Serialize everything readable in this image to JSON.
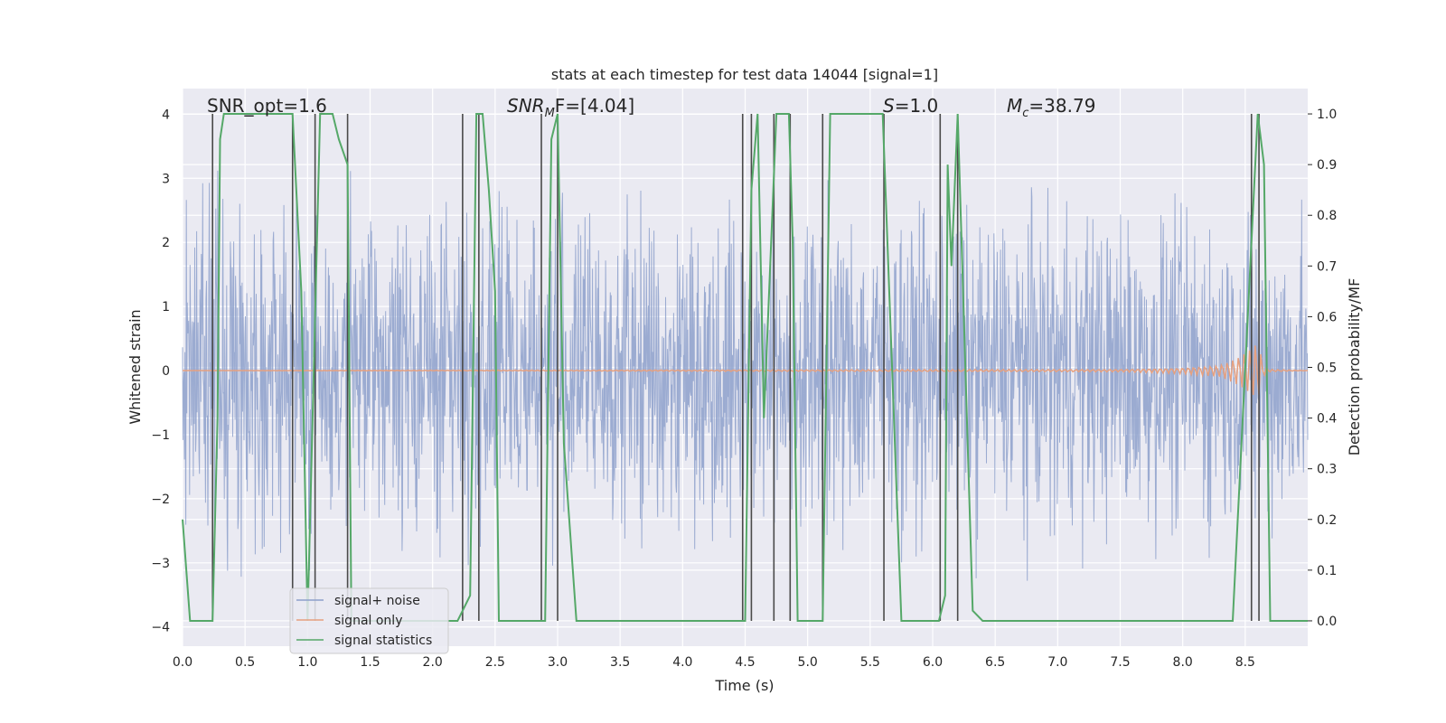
{
  "chart_data": {
    "type": "line",
    "title": "stats at each timestep for test data 14044 [signal=1]",
    "xlabel": "Time (s)",
    "ylabel": "Whitened strain",
    "y2label": "Detection probability/MF",
    "xlim": [
      0.0,
      9.0
    ],
    "ylim": [
      -4.3,
      4.4
    ],
    "y2lim": [
      -0.05,
      1.05
    ],
    "xticks": [
      "0.0",
      "0.5",
      "1.0",
      "1.5",
      "2.0",
      "2.5",
      "3.0",
      "3.5",
      "4.0",
      "4.5",
      "5.0",
      "5.5",
      "6.0",
      "6.5",
      "7.0",
      "7.5",
      "8.0",
      "8.5"
    ],
    "yticks": [
      "4",
      "3",
      "2",
      "1",
      "0",
      "−1",
      "−2",
      "−3",
      "−4"
    ],
    "y2ticks": [
      "1.0",
      "0.9",
      "0.8",
      "0.7",
      "0.6",
      "0.5",
      "0.4",
      "0.3",
      "0.2",
      "0.1",
      "0.0"
    ],
    "grid": true,
    "legend_position": "bottom-left",
    "annotations": [
      "SNR_opt=1.6",
      "SNR",
      "M",
      "F=[4.04]",
      "S",
      "=1.0",
      "M",
      "c",
      "=38.79"
    ],
    "series": [
      {
        "name": "signal+ noise",
        "color": "#8da0cb",
        "axis": "left",
        "description_values": {
          "noise_envelope_typical": 2.0,
          "noise_peak_max": 3.6
        }
      },
      {
        "name": "signal only",
        "color": "#e6a07f",
        "axis": "left",
        "values_x": [
          0.0,
          7.5,
          8.0,
          8.3,
          8.45,
          8.55,
          8.6,
          8.62,
          8.64,
          8.7,
          9.0
        ],
        "values_y": [
          0.0,
          0.02,
          0.05,
          0.1,
          0.25,
          0.4,
          0.5,
          0.35,
          0.1,
          0.02,
          0.0
        ]
      },
      {
        "name": "signal statistics",
        "color": "#55a868",
        "axis": "right",
        "x": [
          0.0,
          0.06,
          0.24,
          0.28,
          0.3,
          0.33,
          0.6,
          0.88,
          0.95,
          1.0,
          1.1,
          1.2,
          1.25,
          1.32,
          1.35,
          1.4,
          2.2,
          2.3,
          2.35,
          2.4,
          2.45,
          2.5,
          2.53,
          2.9,
          2.95,
          3.0,
          3.05,
          3.15,
          3.3,
          4.5,
          4.55,
          4.6,
          4.65,
          4.75,
          4.85,
          4.88,
          4.92,
          5.0,
          5.12,
          5.18,
          5.6,
          5.75,
          6.05,
          6.1,
          6.12,
          6.15,
          6.2,
          6.32,
          6.4,
          6.5,
          8.4,
          8.55,
          8.6,
          8.65,
          8.7,
          8.8,
          9.0
        ],
        "y": [
          0.2,
          0.0,
          0.0,
          0.4,
          0.95,
          1.0,
          1.0,
          1.0,
          0.65,
          0.0,
          1.0,
          1.0,
          0.95,
          0.9,
          0.0,
          0.0,
          0.0,
          0.05,
          1.0,
          1.0,
          0.85,
          0.65,
          0.0,
          0.0,
          0.95,
          1.0,
          0.35,
          0.0,
          0.0,
          0.0,
          0.85,
          1.0,
          0.4,
          1.0,
          1.0,
          0.75,
          0.0,
          0.0,
          0.0,
          1.0,
          1.0,
          0.0,
          0.0,
          0.05,
          0.9,
          0.7,
          1.0,
          0.02,
          0.0,
          0.0,
          0.0,
          0.75,
          1.0,
          0.9,
          0.0,
          0.0,
          0.0
        ]
      }
    ],
    "vertical_markers_x": [
      0.24,
      0.88,
      1.06,
      1.32,
      2.24,
      2.37,
      2.87,
      3.0,
      4.48,
      4.55,
      4.73,
      4.86,
      5.12,
      5.61,
      6.06,
      6.2,
      8.55,
      8.61
    ],
    "marker_color": "#4a4a4a"
  }
}
